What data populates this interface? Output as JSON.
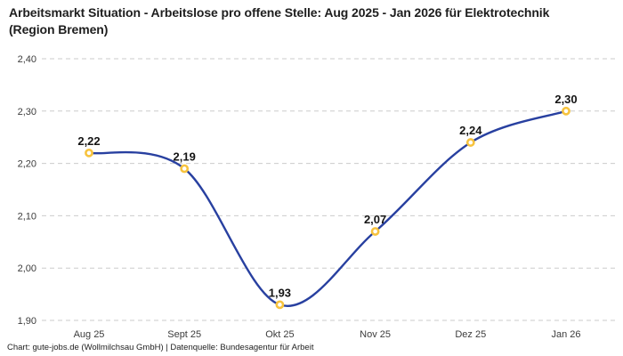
{
  "header": {
    "title": "Arbeitsmarkt Situation - Arbeitslose pro offene Stelle: Aug 2025 - Jan 2026 für Elektrotechnik (Region Bremen)"
  },
  "footer": {
    "credit": "Chart: gute-jobs.de (Wollmilchsau GmbH) | Datenquelle: Bundesagentur für Arbeit"
  },
  "chart_data": {
    "type": "line",
    "title": "Arbeitsmarkt Situation - Arbeitslose pro offene Stelle: Aug 2025 - Jan 2026 für Elektrotechnik (Region Bremen)",
    "categories": [
      "Aug 25",
      "Sept 25",
      "Okt 25",
      "Nov 25",
      "Dez 25",
      "Jan 26"
    ],
    "values": [
      2.22,
      2.19,
      1.93,
      2.07,
      2.24,
      2.3
    ],
    "value_labels": [
      "2,22",
      "2,19",
      "1,93",
      "2,07",
      "2,24",
      "2,30"
    ],
    "xlabel": "",
    "ylabel": "",
    "ylim": [
      1.9,
      2.4
    ],
    "yticks": [
      2.4,
      2.3,
      2.2,
      2.1,
      2.0,
      1.9
    ],
    "ytick_labels": [
      "2,40",
      "2,30",
      "2,20",
      "2,10",
      "2,00",
      "1,90"
    ],
    "grid": "horizontal-dashed",
    "legend": "none",
    "curve": "spline",
    "colors": {
      "line": "#2840a0",
      "marker_ring": "#f7c33e",
      "marker_fill": "#ffffff",
      "gridline": "#cbcbcb",
      "tick_text": "#3c3c3c",
      "label_text": "#141414",
      "title_text": "#1e1e1e"
    }
  }
}
